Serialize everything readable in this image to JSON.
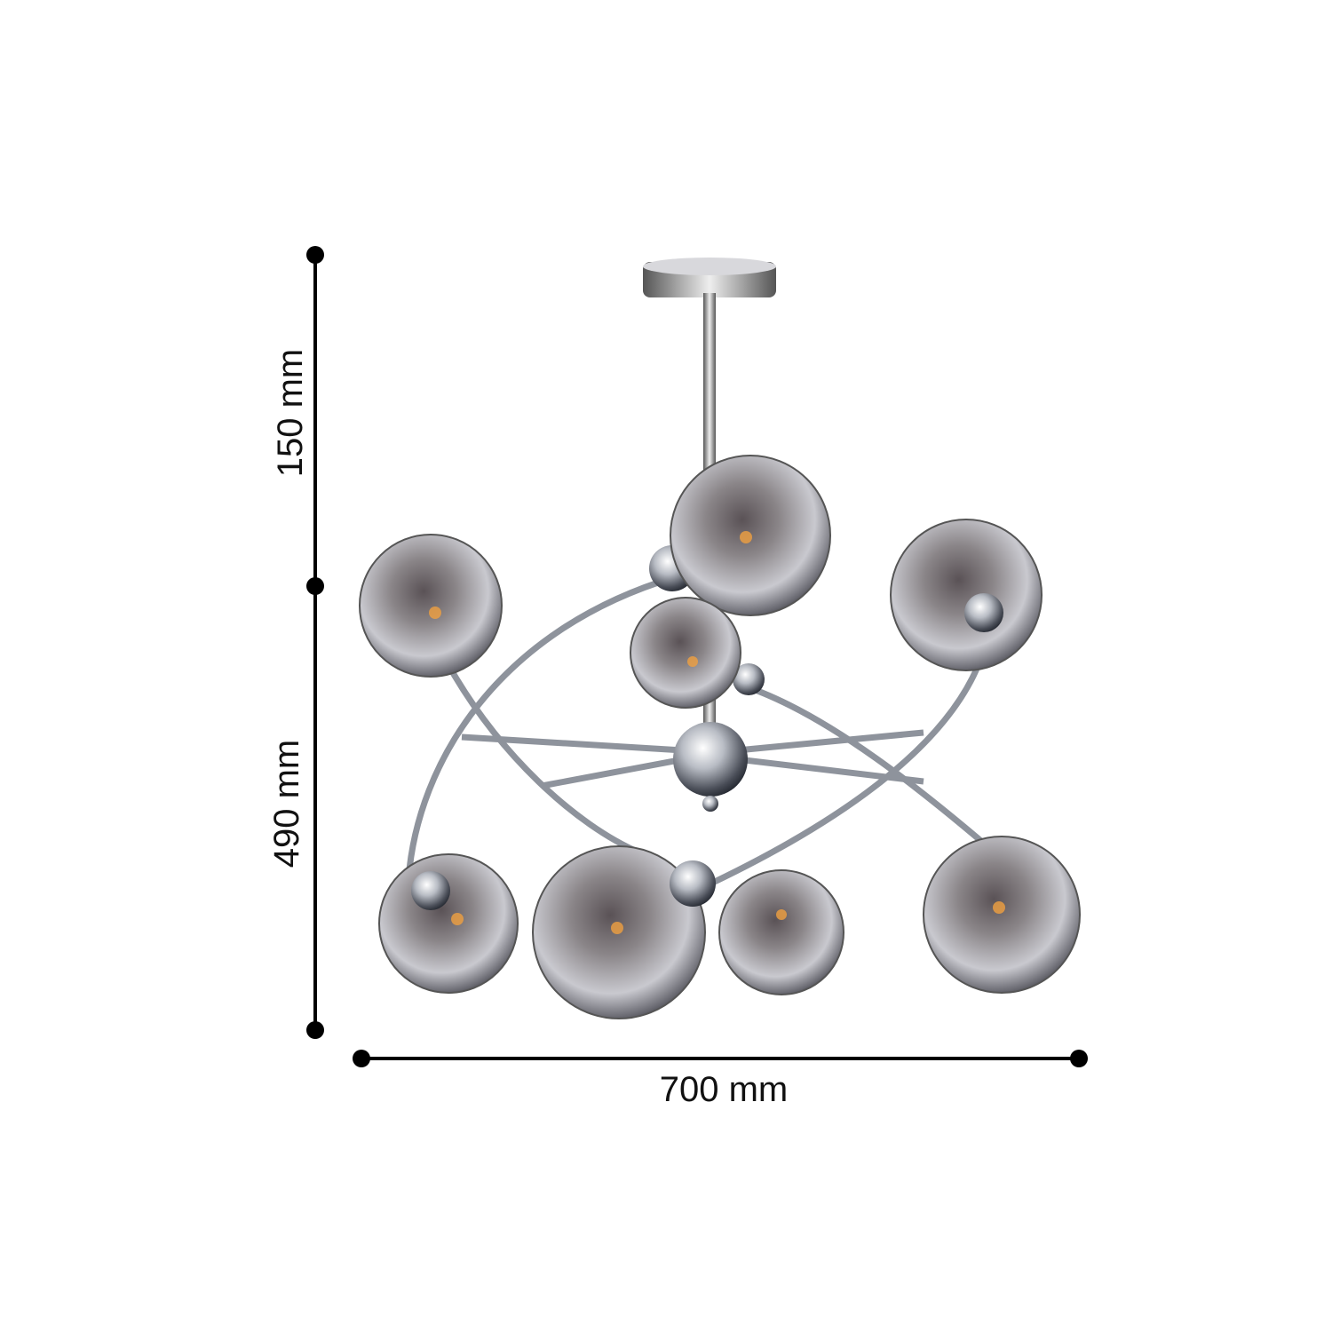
{
  "dimensions": {
    "top_height": "150 mm",
    "body_height": "490 mm",
    "width": "700 mm"
  }
}
